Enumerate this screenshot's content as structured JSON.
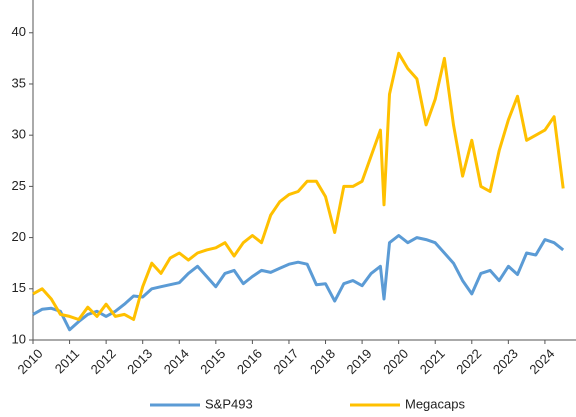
{
  "chart_data": {
    "type": "line",
    "x": [
      2010,
      2010.25,
      2010.5,
      2010.75,
      2011,
      2011.25,
      2011.5,
      2011.75,
      2012,
      2012.25,
      2012.5,
      2012.75,
      2013,
      2013.25,
      2013.5,
      2013.75,
      2014,
      2014.25,
      2014.5,
      2014.75,
      2015,
      2015.25,
      2015.5,
      2015.75,
      2016,
      2016.25,
      2016.5,
      2016.75,
      2017,
      2017.25,
      2017.5,
      2017.75,
      2018,
      2018.25,
      2018.5,
      2018.75,
      2019,
      2019.25,
      2019.5,
      2019.6,
      2019.75,
      2020,
      2020.25,
      2020.5,
      2020.75,
      2021,
      2021.25,
      2021.5,
      2021.75,
      2022,
      2022.25,
      2022.5,
      2022.75,
      2023,
      2023.25,
      2023.5,
      2023.75,
      2024,
      2024.25,
      2024.5
    ],
    "series": [
      {
        "name": "S&P493",
        "color": "#5b9bd5",
        "values": [
          12.5,
          13.0,
          13.1,
          12.8,
          11.0,
          11.8,
          12.5,
          12.8,
          12.3,
          12.8,
          13.5,
          14.3,
          14.2,
          15.0,
          15.2,
          15.4,
          15.6,
          16.5,
          17.2,
          16.2,
          15.2,
          16.5,
          16.8,
          15.5,
          16.2,
          16.8,
          16.6,
          17.0,
          17.4,
          17.6,
          17.4,
          15.4,
          15.5,
          13.8,
          15.5,
          15.8,
          15.3,
          16.5,
          17.2,
          14.0,
          19.5,
          20.2,
          19.5,
          20.0,
          19.8,
          19.5,
          18.5,
          17.5,
          15.8,
          14.5,
          16.5,
          16.8,
          15.8,
          17.2,
          16.4,
          18.5,
          18.3,
          19.8,
          19.5,
          18.8
        ]
      },
      {
        "name": "Megacaps",
        "color": "#ffc000",
        "values": [
          14.5,
          15.0,
          14.0,
          12.5,
          12.3,
          12.0,
          13.2,
          12.3,
          13.5,
          12.3,
          12.5,
          12.0,
          15.2,
          17.5,
          16.5,
          18.0,
          18.5,
          17.8,
          18.5,
          18.8,
          19.0,
          19.5,
          18.2,
          19.5,
          20.2,
          19.5,
          22.2,
          23.5,
          24.2,
          24.5,
          25.5,
          25.5,
          24.0,
          20.5,
          25.0,
          25.0,
          25.5,
          28.0,
          30.5,
          23.2,
          34.0,
          38.0,
          36.5,
          35.5,
          31.0,
          33.5,
          37.5,
          31.0,
          26.0,
          29.5,
          25.0,
          24.5,
          28.5,
          31.5,
          33.8,
          29.5,
          30.0,
          30.5,
          31.8,
          24.8
        ]
      }
    ],
    "xlim": [
      2010,
      2024.85
    ],
    "xticks": [
      2010,
      2011,
      2012,
      2013,
      2014,
      2015,
      2016,
      2017,
      2018,
      2019,
      2020,
      2021,
      2022,
      2023,
      2024
    ],
    "ylim": [
      10,
      43.2
    ],
    "yticks": [
      10,
      15,
      20,
      25,
      30,
      35,
      40
    ],
    "legend": "bottom"
  }
}
